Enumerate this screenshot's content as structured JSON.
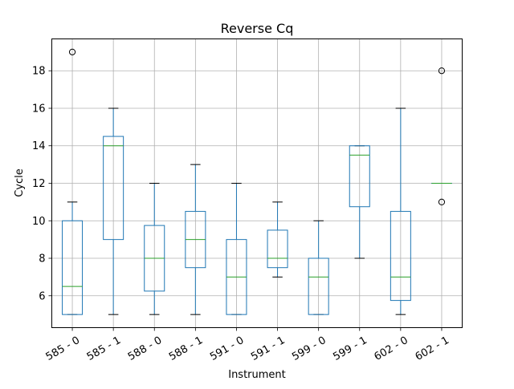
{
  "chart_data": {
    "type": "boxplot",
    "title": "Reverse Cq",
    "xlabel": "Instrument",
    "ylabel": "Cycle",
    "ylim": [
      4.3,
      19.7
    ],
    "yticks": [
      6,
      8,
      10,
      12,
      14,
      16,
      18
    ],
    "grid": true,
    "categories": [
      "585 - 0",
      "585 - 1",
      "588 - 0",
      "588 - 1",
      "591 - 0",
      "591 - 1",
      "599 - 0",
      "599 - 1",
      "602 - 0",
      "602 - 1"
    ],
    "boxes": [
      {
        "category": "585 - 0",
        "whislo": 5,
        "q1": 5,
        "med": 6.5,
        "q3": 10,
        "whishi": 11,
        "fliers": [
          19
        ]
      },
      {
        "category": "585 - 1",
        "whislo": 5,
        "q1": 9,
        "med": 14,
        "q3": 14.5,
        "whishi": 16,
        "fliers": []
      },
      {
        "category": "588 - 0",
        "whislo": 5,
        "q1": 6.25,
        "med": 8,
        "q3": 9.75,
        "whishi": 12,
        "fliers": []
      },
      {
        "category": "588 - 1",
        "whislo": 5,
        "q1": 7.5,
        "med": 9,
        "q3": 10.5,
        "whishi": 13,
        "fliers": []
      },
      {
        "category": "591 - 0",
        "whislo": 5,
        "q1": 5,
        "med": 7,
        "q3": 9,
        "whishi": 12,
        "fliers": []
      },
      {
        "category": "591 - 1",
        "whislo": 7,
        "q1": 7.5,
        "med": 8,
        "q3": 9.5,
        "whishi": 11,
        "fliers": []
      },
      {
        "category": "599 - 0",
        "whislo": 5,
        "q1": 5,
        "med": 7,
        "q3": 8,
        "whishi": 10,
        "fliers": []
      },
      {
        "category": "599 - 1",
        "whislo": 8,
        "q1": 10.75,
        "med": 13.5,
        "q3": 14,
        "whishi": 14,
        "fliers": []
      },
      {
        "category": "602 - 0",
        "whislo": 5,
        "q1": 5.75,
        "med": 7,
        "q3": 10.5,
        "whishi": 16,
        "fliers": []
      },
      {
        "category": "602 - 1",
        "whislo": 12,
        "q1": 12,
        "med": 12,
        "q3": 12,
        "whishi": 12,
        "fliers": [
          18,
          11
        ]
      }
    ],
    "colors": {
      "box": "#1f77b4",
      "median": "#2ca02c",
      "grid": "#b0b0b0",
      "flier": "#000000"
    }
  }
}
